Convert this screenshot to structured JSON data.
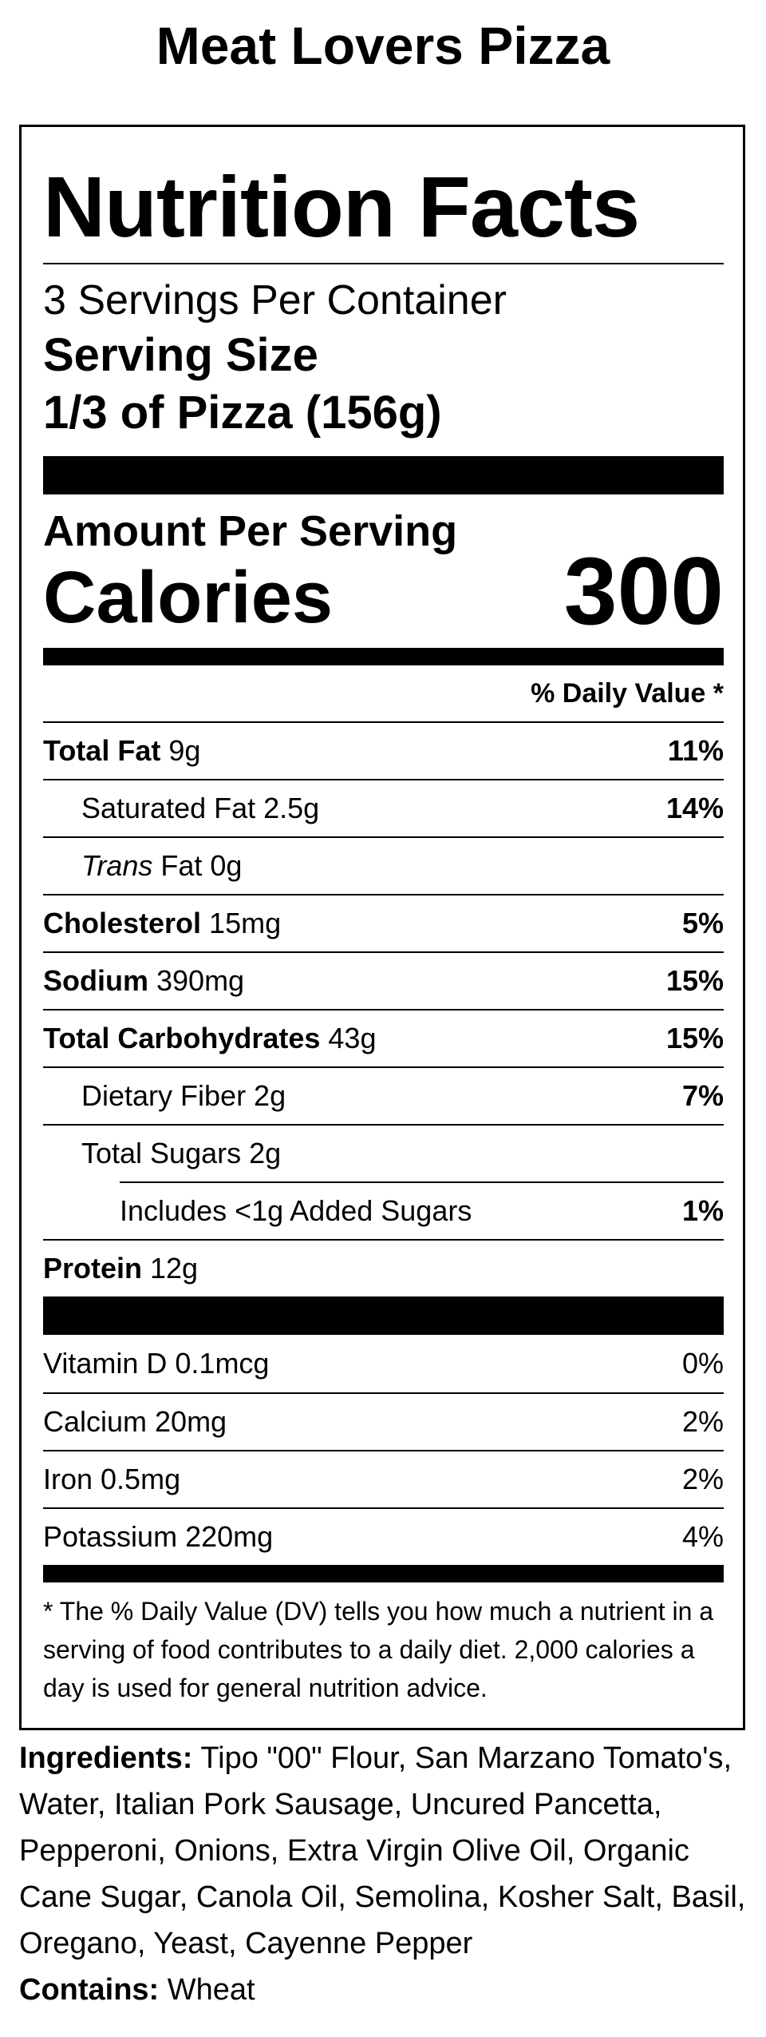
{
  "product_title": "Meat Lovers Pizza",
  "label": {
    "heading": "Nutrition Facts",
    "servings_per_container": "3 Servings Per Container",
    "serving_size_label": "Serving Size",
    "serving_size_value": "1/3 of Pizza (156g)",
    "amount_per_serving": "Amount Per Serving",
    "calories_label": "Calories",
    "calories_value": "300",
    "daily_value_header": "% Daily Value *",
    "nutrients": {
      "total_fat": {
        "name": "Total Fat",
        "amount": " 9g",
        "dv": "11%"
      },
      "saturated_fat": {
        "name": "Saturated Fat 2.5g",
        "dv": "14%"
      },
      "trans_fat": {
        "name_italic": "Trans",
        "name_rest": " Fat 0g"
      },
      "cholesterol": {
        "name": "Cholesterol",
        "amount": " 15mg",
        "dv": "5%"
      },
      "sodium": {
        "name": "Sodium",
        "amount": " 390mg",
        "dv": "15%"
      },
      "total_carbs": {
        "name": "Total Carbohydrates",
        "amount": " 43g",
        "dv": "15%"
      },
      "dietary_fiber": {
        "name": "Dietary Fiber 2g",
        "dv": "7%"
      },
      "total_sugars": {
        "name": "Total Sugars 2g"
      },
      "added_sugars": {
        "name": "Includes <1g Added Sugars",
        "dv": "1%"
      },
      "protein": {
        "name": "Protein",
        "amount": " 12g"
      }
    },
    "vitamins": [
      {
        "name": "Vitamin D 0.1mcg",
        "dv": "0%"
      },
      {
        "name": "Calcium 20mg",
        "dv": "2%"
      },
      {
        "name": "Iron 0.5mg",
        "dv": "2%"
      },
      {
        "name": "Potassium 220mg",
        "dv": "4%"
      }
    ],
    "footnote": "* The % Daily Value (DV) tells you how much a nutrient in a serving of food contributes to a daily diet. 2,000 calories a day is used for general nutrition advice."
  },
  "ingredients": {
    "label": "Ingredients:",
    "text": " Tipo \"00\" Flour, San Marzano Tomato's, Water, Italian Pork Sausage, Uncured Pancetta, Pepperoni, Onions, Extra Virgin Olive Oil, Organic Cane Sugar, Canola Oil, Semolina, Kosher Salt, Basil, Oregano, Yeast, Cayenne Pepper"
  },
  "contains": {
    "label": "Contains:",
    "text": " Wheat"
  }
}
